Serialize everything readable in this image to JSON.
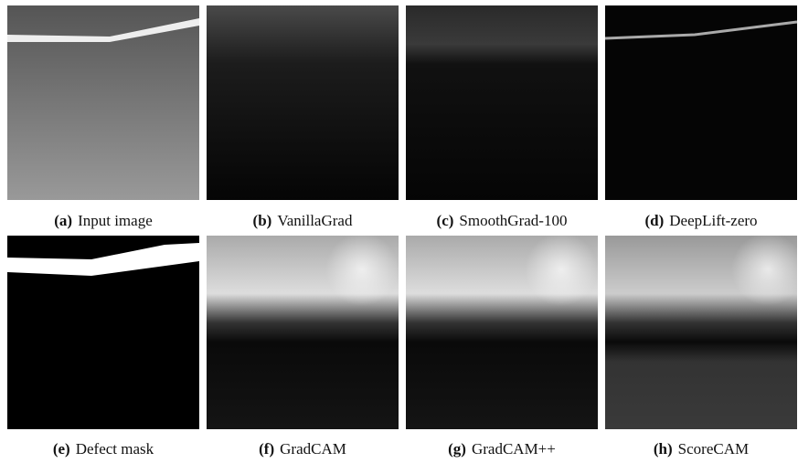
{
  "panels": [
    {
      "label": "(a)",
      "caption": "Input image"
    },
    {
      "label": "(b)",
      "caption": "VanillaGrad"
    },
    {
      "label": "(c)",
      "caption": "SmoothGrad-100"
    },
    {
      "label": "(d)",
      "caption": "DeepLift-zero"
    },
    {
      "label": "(e)",
      "caption": "Defect mask"
    },
    {
      "label": "(f)",
      "caption": "GradCAM"
    },
    {
      "label": "(g)",
      "caption": "GradCAM++"
    },
    {
      "label": "(h)",
      "caption": "ScoreCAM"
    }
  ]
}
